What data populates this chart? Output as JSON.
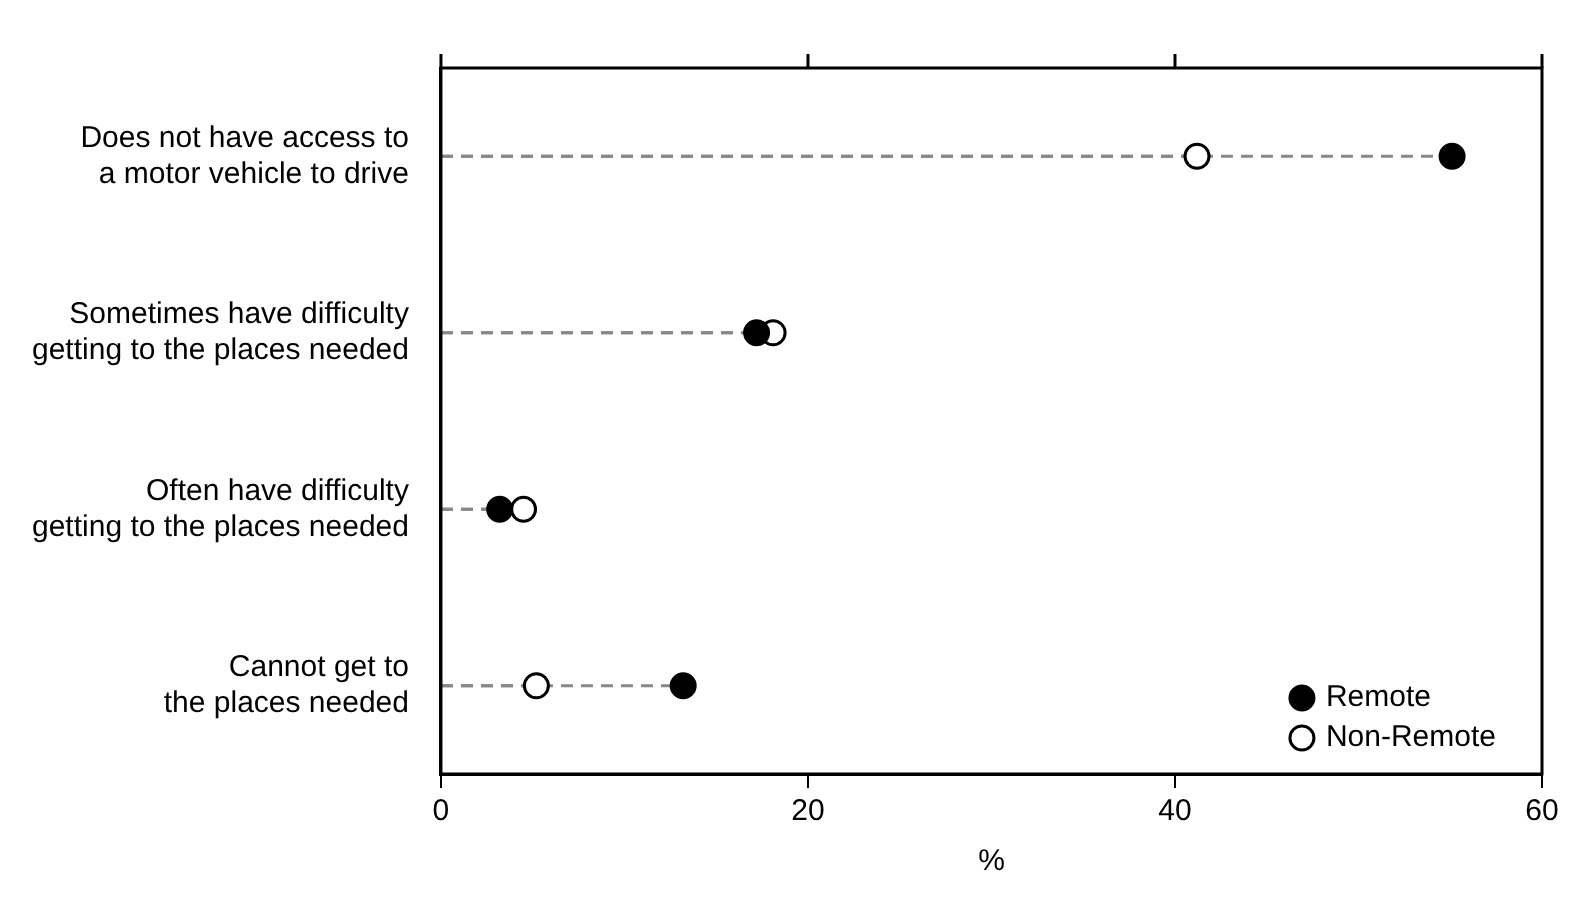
{
  "chart_data": {
    "type": "lollipop",
    "orientation": "horizontal",
    "xlabel": "%",
    "categories": [
      "Does not have access to a motor vehicle to drive",
      "Sometimes have difficulty getting to the places needed",
      "Often have difficulty getting to the places needed",
      "Cannot get to the places needed"
    ],
    "series": [
      {
        "name": "Remote",
        "color": "#000000",
        "values": [
          55.1,
          17.2,
          3.2,
          13.2
        ]
      },
      {
        "name": "Non-Remote",
        "color": "#ffffff",
        "values": [
          41.2,
          18.1,
          4.5,
          5.2
        ]
      }
    ],
    "xlim": [
      0,
      60
    ],
    "xticks": [
      0,
      20,
      40,
      60
    ],
    "grid": false,
    "legend": "bottom right",
    "marker": "circle",
    "line_style": "dashed"
  }
}
